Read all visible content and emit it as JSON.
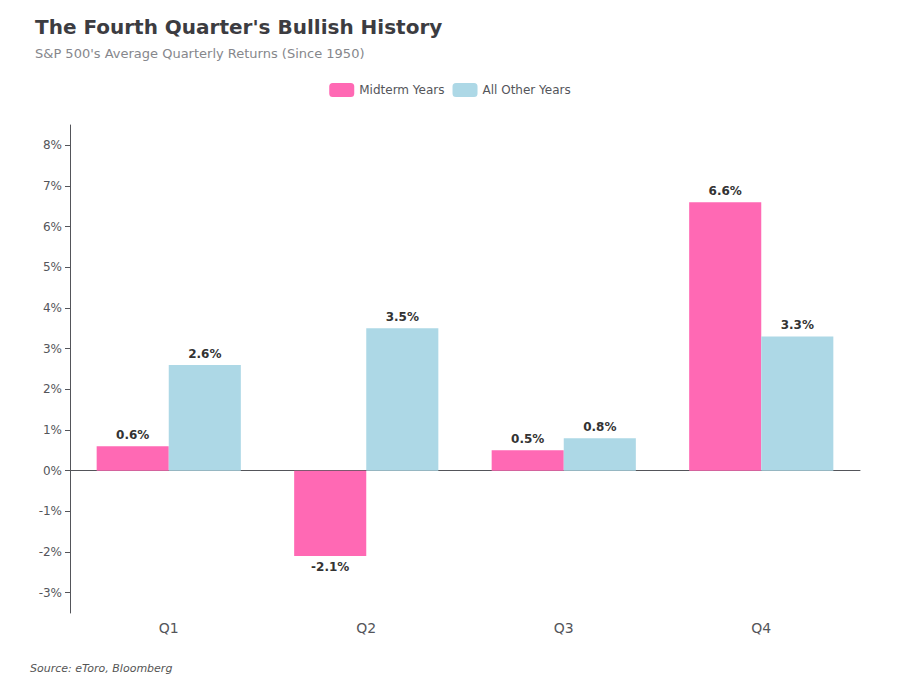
{
  "chart_data": {
    "type": "bar",
    "title": "The Fourth Quarter's Bullish History",
    "subtitle": "S&P 500's Average Quarterly Returns (Since 1950)",
    "annotations": [
      "Source: eToro, Bloomberg"
    ],
    "categories": [
      "Q1",
      "Q2",
      "Q3",
      "Q4"
    ],
    "series": [
      {
        "name": "Midterm Years",
        "color": "#FF69B4",
        "values": [
          0.6,
          -2.1,
          0.5,
          6.6
        ],
        "value_labels": [
          "0.6%",
          "-2.1%",
          "0.5%",
          "6.6%"
        ]
      },
      {
        "name": "All Other Years",
        "color": "#ADD8E6",
        "values": [
          2.6,
          3.5,
          0.8,
          3.3
        ],
        "value_labels": [
          "2.6%",
          "3.5%",
          "0.8%",
          "3.3%"
        ]
      }
    ],
    "ylim": [
      -3.5,
      8.5
    ],
    "yticks": [
      {
        "value": -3,
        "label": "-3%"
      },
      {
        "value": -2,
        "label": "-2%"
      },
      {
        "value": -1,
        "label": "-1%"
      },
      {
        "value": 0,
        "label": "0%"
      },
      {
        "value": 1,
        "label": "1%"
      },
      {
        "value": 2,
        "label": "2%"
      },
      {
        "value": 3,
        "label": "3%"
      },
      {
        "value": 4,
        "label": "4%"
      },
      {
        "value": 5,
        "label": "5%"
      },
      {
        "value": 6,
        "label": "6%"
      },
      {
        "value": 7,
        "label": "7%"
      },
      {
        "value": 8,
        "label": "8%"
      }
    ],
    "grid": false,
    "legend": "top",
    "data_labels": true
  }
}
